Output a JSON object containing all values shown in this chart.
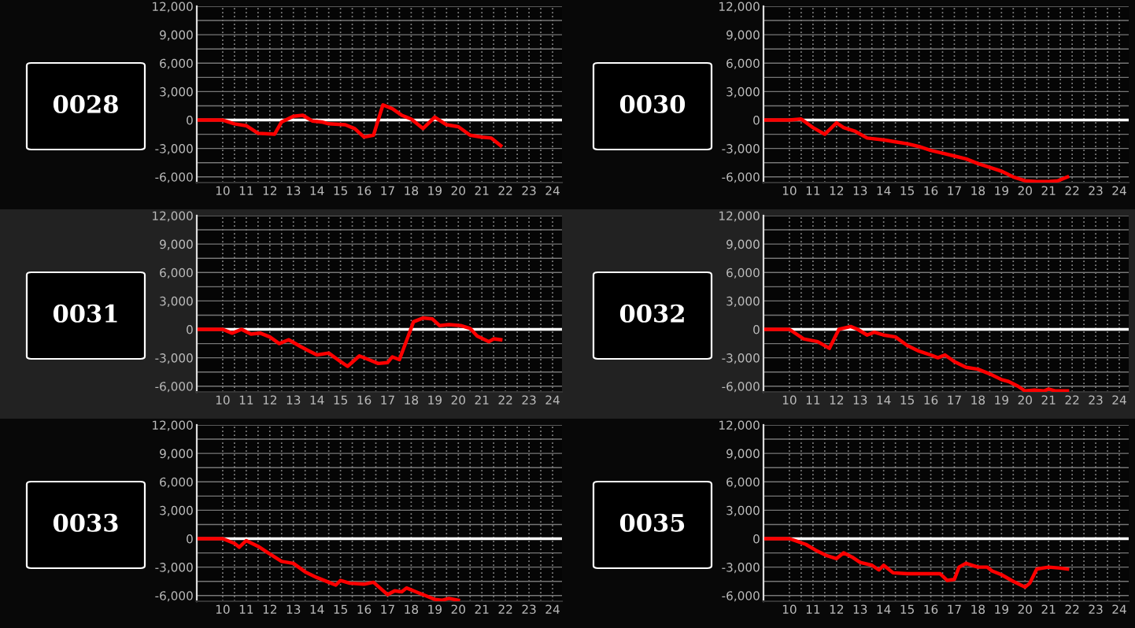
{
  "chart_data": [
    {
      "type": "line",
      "title": "0028",
      "xlim": [
        8.9,
        24.4
      ],
      "ylim": [
        -6600,
        12000
      ],
      "xticks": [
        10,
        {
          "value": 10.5,
          "label": null
        },
        11,
        {
          "value": 11.5,
          "label": null
        },
        12,
        {
          "value": 12.5,
          "label": null
        },
        13,
        {
          "value": 13.5,
          "label": null
        },
        14,
        {
          "value": 14.5,
          "label": null
        },
        15,
        {
          "value": 15.5,
          "label": null
        },
        16,
        {
          "value": 16.5,
          "label": null
        },
        17,
        {
          "value": 17.5,
          "label": null
        },
        18,
        {
          "value": 18.5,
          "label": null
        },
        19,
        {
          "value": 19.5,
          "label": null
        },
        20,
        {
          "value": 20.5,
          "label": null
        },
        21,
        {
          "value": 21.5,
          "label": null
        },
        22,
        {
          "value": 22.5,
          "label": null
        },
        23,
        {
          "value": 23.5,
          "label": null
        },
        24
      ],
      "yticks": [
        {
          "value": -6000,
          "label": "-6,000"
        },
        {
          "value": -4500,
          "label": null
        },
        {
          "value": -3000,
          "label": "-3,000"
        },
        {
          "value": -1500,
          "label": null
        },
        0,
        {
          "value": 1500,
          "label": null
        },
        {
          "value": 3000,
          "label": "3,000"
        },
        {
          "value": 4500,
          "label": null
        },
        {
          "value": 6000,
          "label": "6,000"
        },
        {
          "value": 7500,
          "label": null
        },
        {
          "value": 9000,
          "label": "9,000"
        },
        {
          "value": 10500,
          "label": null
        },
        {
          "value": 12000,
          "label": "12,000"
        }
      ],
      "grid": true,
      "ref_lines": [
        {
          "axis": "y",
          "value": 0,
          "color": "#ffffff"
        }
      ],
      "series": [
        {
          "color": "#ff0000",
          "x": [
            9,
            10,
            10.5,
            11,
            11.5,
            12.2,
            12.5,
            13,
            13.4,
            13.8,
            14.2,
            14.5,
            15.2,
            15.6,
            16,
            16.4,
            16.8,
            17.2,
            17.6,
            18,
            18.5,
            19,
            19.5,
            20,
            20.5,
            21,
            21.4,
            21.8
          ],
          "values": [
            0,
            0,
            -400,
            -600,
            -1400,
            -1500,
            -200,
            400,
            500,
            -100,
            -200,
            -400,
            -500,
            -900,
            -1800,
            -1600,
            1600,
            1200,
            500,
            100,
            -900,
            300,
            -500,
            -700,
            -1600,
            -1800,
            -1900,
            -2700
          ]
        }
      ]
    },
    {
      "type": "line",
      "title": "0030",
      "xlim": [
        8.9,
        24.4
      ],
      "ylim": [
        -6600,
        12000
      ],
      "xticks": [
        10,
        {
          "value": 10.5,
          "label": null
        },
        11,
        {
          "value": 11.5,
          "label": null
        },
        12,
        {
          "value": 12.5,
          "label": null
        },
        13,
        {
          "value": 13.5,
          "label": null
        },
        14,
        {
          "value": 14.5,
          "label": null
        },
        15,
        {
          "value": 15.5,
          "label": null
        },
        16,
        {
          "value": 16.5,
          "label": null
        },
        17,
        {
          "value": 17.5,
          "label": null
        },
        18,
        {
          "value": 18.5,
          "label": null
        },
        19,
        {
          "value": 19.5,
          "label": null
        },
        20,
        {
          "value": 20.5,
          "label": null
        },
        21,
        {
          "value": 21.5,
          "label": null
        },
        22,
        {
          "value": 22.5,
          "label": null
        },
        23,
        {
          "value": 23.5,
          "label": null
        },
        24
      ],
      "yticks": [
        {
          "value": -6000,
          "label": "-6,000"
        },
        {
          "value": -4500,
          "label": null
        },
        {
          "value": -3000,
          "label": "-3,000"
        },
        {
          "value": -1500,
          "label": null
        },
        0,
        {
          "value": 1500,
          "label": null
        },
        {
          "value": 3000,
          "label": "3,000"
        },
        {
          "value": 4500,
          "label": null
        },
        {
          "value": 6000,
          "label": "6,000"
        },
        {
          "value": 7500,
          "label": null
        },
        {
          "value": 9000,
          "label": "9,000"
        },
        {
          "value": 10500,
          "label": null
        },
        {
          "value": 12000,
          "label": "12,000"
        }
      ],
      "grid": true,
      "ref_lines": [
        {
          "axis": "y",
          "value": 0,
          "color": "#ffffff"
        }
      ],
      "series": [
        {
          "color": "#ff0000",
          "x": [
            9,
            10,
            10.5,
            11,
            11.5,
            12,
            12.3,
            12.8,
            13.3,
            14,
            14.5,
            15,
            15.5,
            16,
            16.5,
            17,
            17.5,
            18,
            18.5,
            19,
            19.5,
            20,
            20.5,
            21,
            21.4,
            21.8
          ],
          "values": [
            0,
            0,
            100,
            -800,
            -1500,
            -300,
            -800,
            -1200,
            -1900,
            -2100,
            -2300,
            -2500,
            -2800,
            -3200,
            -3500,
            -3800,
            -4100,
            -4600,
            -5000,
            -5400,
            -6000,
            -6400,
            -6500,
            -6500,
            -6400,
            -6000
          ]
        }
      ]
    },
    {
      "type": "line",
      "title": "0031",
      "xlim": [
        8.9,
        24.4
      ],
      "ylim": [
        -6600,
        12000
      ],
      "xticks": [
        10,
        {
          "value": 10.5,
          "label": null
        },
        11,
        {
          "value": 11.5,
          "label": null
        },
        12,
        {
          "value": 12.5,
          "label": null
        },
        13,
        {
          "value": 13.5,
          "label": null
        },
        14,
        {
          "value": 14.5,
          "label": null
        },
        15,
        {
          "value": 15.5,
          "label": null
        },
        16,
        {
          "value": 16.5,
          "label": null
        },
        17,
        {
          "value": 17.5,
          "label": null
        },
        18,
        {
          "value": 18.5,
          "label": null
        },
        19,
        {
          "value": 19.5,
          "label": null
        },
        20,
        {
          "value": 20.5,
          "label": null
        },
        21,
        {
          "value": 21.5,
          "label": null
        },
        22,
        {
          "value": 22.5,
          "label": null
        },
        23,
        {
          "value": 23.5,
          "label": null
        },
        24
      ],
      "yticks": [
        {
          "value": -6000,
          "label": "-6,000"
        },
        {
          "value": -4500,
          "label": null
        },
        {
          "value": -3000,
          "label": "-3,000"
        },
        {
          "value": -1500,
          "label": null
        },
        0,
        {
          "value": 1500,
          "label": null
        },
        {
          "value": 3000,
          "label": "3,000"
        },
        {
          "value": 4500,
          "label": null
        },
        {
          "value": 6000,
          "label": "6,000"
        },
        {
          "value": 7500,
          "label": null
        },
        {
          "value": 9000,
          "label": "9,000"
        },
        {
          "value": 10500,
          "label": null
        },
        {
          "value": 12000,
          "label": "12,000"
        }
      ],
      "grid": true,
      "ref_lines": [
        {
          "axis": "y",
          "value": 0,
          "color": "#ffffff"
        }
      ],
      "series": [
        {
          "color": "#ff0000",
          "x": [
            9,
            10,
            10.4,
            10.8,
            11.2,
            11.6,
            12,
            12.4,
            12.8,
            13.3,
            13.6,
            14,
            14.5,
            15,
            15.3,
            15.8,
            16.2,
            16.6,
            17,
            17.2,
            17.5,
            17.8,
            18.1,
            18.5,
            18.9,
            19.2,
            19.6,
            20.1,
            20.5,
            20.8,
            21.3,
            21.5,
            21.8
          ],
          "values": [
            0,
            0,
            -400,
            0,
            -500,
            -400,
            -800,
            -1500,
            -1100,
            -1800,
            -2200,
            -2700,
            -2500,
            -3400,
            -3900,
            -2800,
            -3200,
            -3600,
            -3500,
            -2900,
            -3200,
            -1200,
            800,
            1200,
            1100,
            400,
            500,
            400,
            100,
            -700,
            -1300,
            -1000,
            -1100
          ]
        }
      ]
    },
    {
      "type": "line",
      "title": "0032",
      "xlim": [
        8.9,
        24.4
      ],
      "ylim": [
        -6600,
        12000
      ],
      "xticks": [
        10,
        {
          "value": 10.5,
          "label": null
        },
        11,
        {
          "value": 11.5,
          "label": null
        },
        12,
        {
          "value": 12.5,
          "label": null
        },
        13,
        {
          "value": 13.5,
          "label": null
        },
        14,
        {
          "value": 14.5,
          "label": null
        },
        15,
        {
          "value": 15.5,
          "label": null
        },
        16,
        {
          "value": 16.5,
          "label": null
        },
        17,
        {
          "value": 17.5,
          "label": null
        },
        18,
        {
          "value": 18.5,
          "label": null
        },
        19,
        {
          "value": 19.5,
          "label": null
        },
        20,
        {
          "value": 20.5,
          "label": null
        },
        21,
        {
          "value": 21.5,
          "label": null
        },
        22,
        {
          "value": 22.5,
          "label": null
        },
        23,
        {
          "value": 23.5,
          "label": null
        },
        24
      ],
      "yticks": [
        {
          "value": -6000,
          "label": "-6,000"
        },
        {
          "value": -4500,
          "label": null
        },
        {
          "value": -3000,
          "label": "-3,000"
        },
        {
          "value": -1500,
          "label": null
        },
        0,
        {
          "value": 1500,
          "label": null
        },
        {
          "value": 3000,
          "label": "3,000"
        },
        {
          "value": 4500,
          "label": null
        },
        {
          "value": 6000,
          "label": "6,000"
        },
        {
          "value": 7500,
          "label": null
        },
        {
          "value": 9000,
          "label": "9,000"
        },
        {
          "value": 10500,
          "label": null
        },
        {
          "value": 12000,
          "label": "12,000"
        }
      ],
      "grid": true,
      "ref_lines": [
        {
          "axis": "y",
          "value": 0,
          "color": "#ffffff"
        }
      ],
      "series": [
        {
          "color": "#ff0000",
          "x": [
            9,
            10,
            10.6,
            11.2,
            11.7,
            12.1,
            12.6,
            12.9,
            13.3,
            13.6,
            14,
            14.5,
            15,
            15.5,
            16,
            16.3,
            16.6,
            17,
            17.5,
            18,
            18.5,
            19,
            19.3,
            19.7,
            20,
            20.4,
            20.8,
            21,
            21.3,
            21.8
          ],
          "values": [
            0,
            0,
            -1000,
            -1300,
            -2000,
            0,
            300,
            0,
            -600,
            -300,
            -600,
            -800,
            -1700,
            -2300,
            -2700,
            -3000,
            -2700,
            -3400,
            -4000,
            -4200,
            -4700,
            -5300,
            -5500,
            -6000,
            -6500,
            -6400,
            -6500,
            -6300,
            -6500,
            -6500
          ]
        }
      ]
    },
    {
      "type": "line",
      "title": "0033",
      "xlim": [
        8.9,
        24.4
      ],
      "ylim": [
        -6600,
        12000
      ],
      "xticks": [
        10,
        {
          "value": 10.5,
          "label": null
        },
        11,
        {
          "value": 11.5,
          "label": null
        },
        12,
        {
          "value": 12.5,
          "label": null
        },
        13,
        {
          "value": 13.5,
          "label": null
        },
        14,
        {
          "value": 14.5,
          "label": null
        },
        15,
        {
          "value": 15.5,
          "label": null
        },
        16,
        {
          "value": 16.5,
          "label": null
        },
        17,
        {
          "value": 17.5,
          "label": null
        },
        18,
        {
          "value": 18.5,
          "label": null
        },
        19,
        {
          "value": 19.5,
          "label": null
        },
        20,
        {
          "value": 20.5,
          "label": null
        },
        21,
        {
          "value": 21.5,
          "label": null
        },
        22,
        {
          "value": 22.5,
          "label": null
        },
        23,
        {
          "value": 23.5,
          "label": null
        },
        24
      ],
      "yticks": [
        {
          "value": -6000,
          "label": "-6,000"
        },
        {
          "value": -4500,
          "label": null
        },
        {
          "value": -3000,
          "label": "-3,000"
        },
        {
          "value": -1500,
          "label": null
        },
        0,
        {
          "value": 1500,
          "label": null
        },
        {
          "value": 3000,
          "label": "3,000"
        },
        {
          "value": 4500,
          "label": null
        },
        {
          "value": 6000,
          "label": "6,000"
        },
        {
          "value": 7500,
          "label": null
        },
        {
          "value": 9000,
          "label": "9,000"
        },
        {
          "value": 10500,
          "label": null
        },
        {
          "value": 12000,
          "label": "12,000"
        }
      ],
      "grid": true,
      "ref_lines": [
        {
          "axis": "y",
          "value": 0,
          "color": "#ffffff"
        }
      ],
      "series": [
        {
          "color": "#ff0000",
          "x": [
            9,
            10,
            10.5,
            10.7,
            11,
            11.5,
            12,
            12.5,
            13,
            13.5,
            14,
            14.5,
            14.8,
            15,
            15.4,
            16,
            16.4,
            17,
            17.3,
            17.6,
            17.8,
            18.2,
            18.6,
            19,
            19.3,
            19.6,
            20
          ],
          "values": [
            0,
            0,
            -500,
            -900,
            -200,
            -800,
            -1600,
            -2400,
            -2600,
            -3500,
            -4100,
            -4600,
            -4900,
            -4400,
            -4700,
            -4800,
            -4600,
            -5900,
            -5500,
            -5600,
            -5200,
            -5600,
            -6000,
            -6400,
            -6500,
            -6300,
            -6500
          ]
        }
      ]
    },
    {
      "type": "line",
      "title": "0035",
      "xlim": [
        8.9,
        24.4
      ],
      "ylim": [
        -6600,
        12000
      ],
      "xticks": [
        10,
        {
          "value": 10.5,
          "label": null
        },
        11,
        {
          "value": 11.5,
          "label": null
        },
        12,
        {
          "value": 12.5,
          "label": null
        },
        13,
        {
          "value": 13.5,
          "label": null
        },
        14,
        {
          "value": 14.5,
          "label": null
        },
        15,
        {
          "value": 15.5,
          "label": null
        },
        16,
        {
          "value": 16.5,
          "label": null
        },
        17,
        {
          "value": 17.5,
          "label": null
        },
        18,
        {
          "value": 18.5,
          "label": null
        },
        19,
        {
          "value": 19.5,
          "label": null
        },
        20,
        {
          "value": 20.5,
          "label": null
        },
        21,
        {
          "value": 21.5,
          "label": null
        },
        22,
        {
          "value": 22.5,
          "label": null
        },
        23,
        {
          "value": 23.5,
          "label": null
        },
        24
      ],
      "yticks": [
        {
          "value": -6000,
          "label": "-6,000"
        },
        {
          "value": -4500,
          "label": null
        },
        {
          "value": -3000,
          "label": "-3,000"
        },
        {
          "value": -1500,
          "label": null
        },
        0,
        {
          "value": 1500,
          "label": null
        },
        {
          "value": 3000,
          "label": "3,000"
        },
        {
          "value": 4500,
          "label": null
        },
        {
          "value": 6000,
          "label": "6,000"
        },
        {
          "value": 7500,
          "label": null
        },
        {
          "value": 9000,
          "label": "9,000"
        },
        {
          "value": 10500,
          "label": null
        },
        {
          "value": 12000,
          "label": "12,000"
        }
      ],
      "grid": true,
      "ref_lines": [
        {
          "axis": "y",
          "value": 0,
          "color": "#ffffff"
        }
      ],
      "series": [
        {
          "color": "#ff0000",
          "x": [
            9,
            10,
            10.7,
            11.1,
            11.6,
            12,
            12.3,
            12.7,
            13,
            13.5,
            13.8,
            14,
            14.4,
            15,
            16,
            16.4,
            16.7,
            17,
            17.2,
            17.5,
            18,
            18.4,
            18.6,
            19,
            19.5,
            20,
            20.2,
            20.5,
            21,
            21.5,
            21.8
          ],
          "values": [
            0,
            0,
            -600,
            -1200,
            -1800,
            -2100,
            -1500,
            -2000,
            -2500,
            -2800,
            -3300,
            -2800,
            -3600,
            -3700,
            -3700,
            -3700,
            -4400,
            -4300,
            -3000,
            -2600,
            -3000,
            -3000,
            -3400,
            -3800,
            -4500,
            -5100,
            -4700,
            -3200,
            -3000,
            -3100,
            -3200
          ]
        }
      ]
    }
  ]
}
